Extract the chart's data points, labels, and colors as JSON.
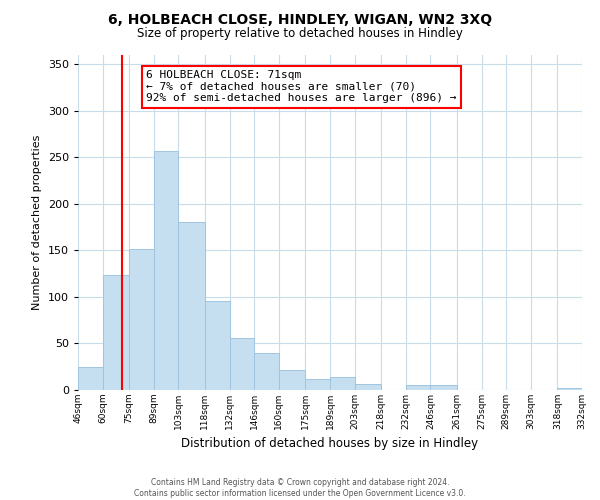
{
  "title": "6, HOLBEACH CLOSE, HINDLEY, WIGAN, WN2 3XQ",
  "subtitle": "Size of property relative to detached houses in Hindley",
  "xlabel": "Distribution of detached houses by size in Hindley",
  "ylabel": "Number of detached properties",
  "bar_color": "#c5dff0",
  "bar_edge_color": "#a0c4e0",
  "bins": [
    46,
    60,
    75,
    89,
    103,
    118,
    132,
    146,
    160,
    175,
    189,
    203,
    218,
    232,
    246,
    261,
    275,
    289,
    303,
    318,
    332
  ],
  "bin_labels": [
    "46sqm",
    "60sqm",
    "75sqm",
    "89sqm",
    "103sqm",
    "118sqm",
    "132sqm",
    "146sqm",
    "160sqm",
    "175sqm",
    "189sqm",
    "203sqm",
    "218sqm",
    "232sqm",
    "246sqm",
    "261sqm",
    "275sqm",
    "289sqm",
    "303sqm",
    "318sqm",
    "332sqm"
  ],
  "values": [
    25,
    124,
    152,
    257,
    181,
    96,
    56,
    40,
    22,
    12,
    14,
    6,
    0,
    5,
    5,
    0,
    0,
    0,
    0,
    2
  ],
  "ylim": [
    0,
    360
  ],
  "yticks": [
    0,
    50,
    100,
    150,
    200,
    250,
    300,
    350
  ],
  "property_line_x": 71,
  "property_line_label": "6 HOLBEACH CLOSE: 71sqm",
  "pct_smaller": "7% of detached houses are smaller (70)",
  "pct_larger": "92% of semi-detached houses are larger (896)",
  "footer_line1": "Contains HM Land Registry data © Crown copyright and database right 2024.",
  "footer_line2": "Contains public sector information licensed under the Open Government Licence v3.0.",
  "background_color": "#ffffff",
  "grid_color": "#c8dcea"
}
